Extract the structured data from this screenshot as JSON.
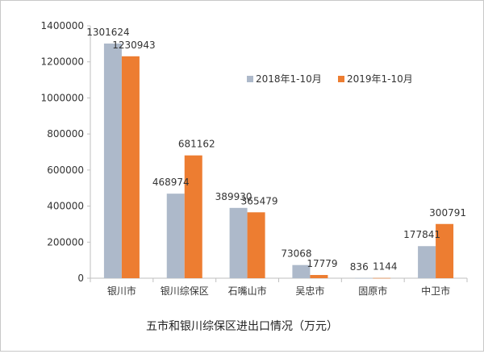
{
  "chart_data": {
    "type": "bar",
    "title": "五市和银川综保区进出口情况（万元）",
    "categories": [
      "银川市",
      "银川综保区",
      "石嘴山市",
      "吴忠市",
      "固原市",
      "中卫市"
    ],
    "series": [
      {
        "name": "2018年1-10月",
        "color": "#adb9ca",
        "values": [
          1301624,
          468974,
          389930,
          73068,
          836,
          177841
        ]
      },
      {
        "name": "2019年1-10月",
        "color": "#ed7d31",
        "values": [
          1230943,
          681162,
          365479,
          17779,
          1144,
          300791
        ]
      }
    ],
    "yticks": [
      "0",
      "200000",
      "400000",
      "600000",
      "800000",
      "1000000",
      "1200000",
      "1400000"
    ],
    "ylim": [
      0,
      1400000
    ],
    "grid": false,
    "legend_position": "top-right"
  }
}
